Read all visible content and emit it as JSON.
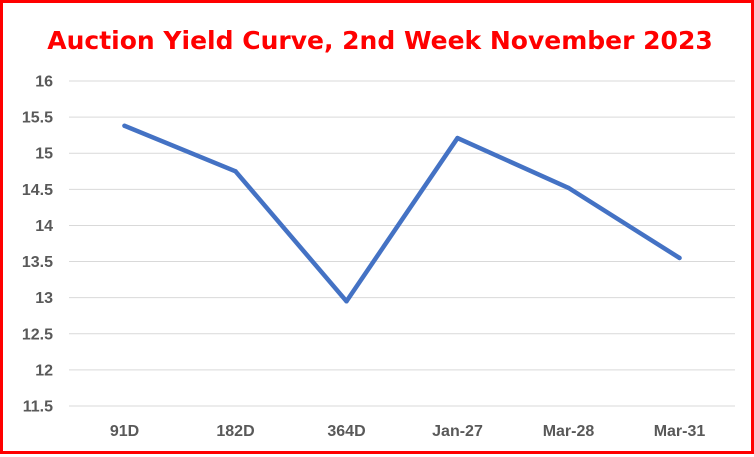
{
  "chart_data": {
    "type": "line",
    "title": "Auction Yield Curve, 2nd Week November 2023",
    "xlabel": "",
    "ylabel": "",
    "categories": [
      "91D",
      "182D",
      "364D",
      "Jan-27",
      "Mar-28",
      "Mar-31"
    ],
    "series": [
      {
        "values": [
          15.38,
          14.75,
          12.95,
          15.21,
          14.52,
          13.55
        ]
      }
    ],
    "ylim": [
      11.5,
      16
    ],
    "yticks": [
      "11.5",
      "12",
      "12.5",
      "13",
      "13.5",
      "14",
      "14.5",
      "15",
      "15.5",
      "16"
    ],
    "grid": "horizontal",
    "legend": "none"
  },
  "colors": {
    "border": "#ff0000",
    "title": "#ff0000",
    "line": "#4472c4",
    "grid": "#d9d9d9",
    "tick_text": "#595959"
  }
}
